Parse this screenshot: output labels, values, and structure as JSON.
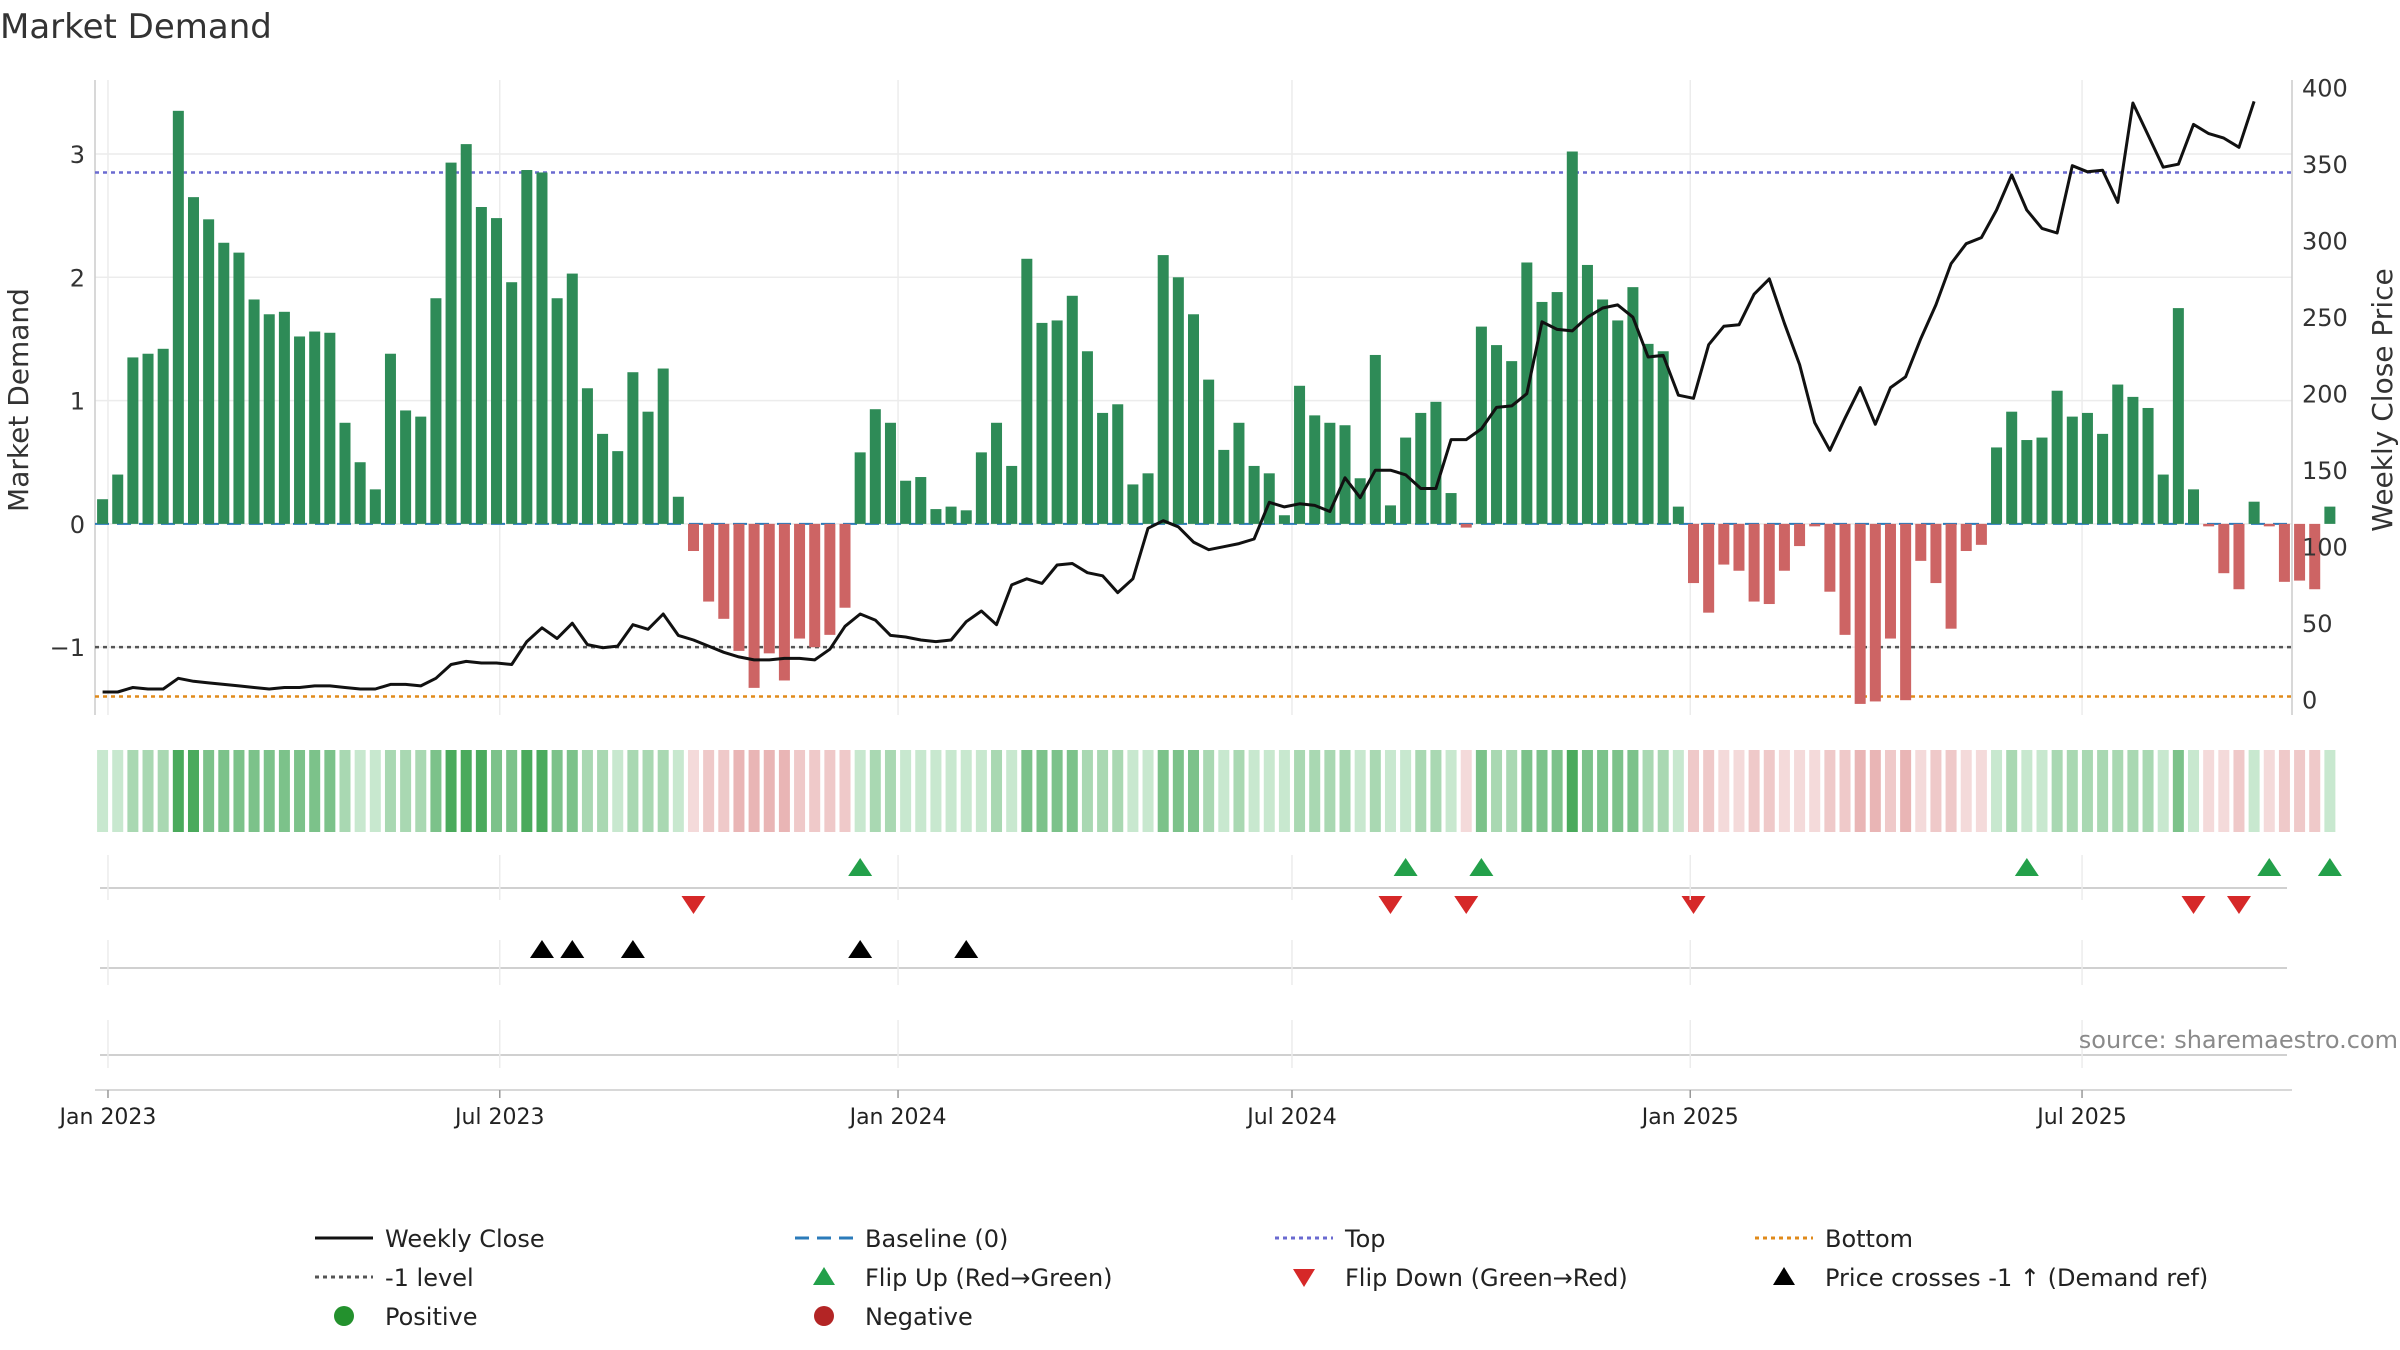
{
  "chart_data": {
    "type": "bar",
    "title": "Market Demand",
    "ylabel_left": "Market Demand",
    "ylabel_right": "Weekly Close Price",
    "source_text": "source: sharemaestro.com",
    "ylim_left": [
      -1.55,
      3.6
    ],
    "ylim_right": [
      -10,
      405
    ],
    "yticks_left": [
      -1,
      0,
      1,
      2,
      3
    ],
    "ytick_labels_left": [
      "−1",
      "0",
      "1",
      "2",
      "3"
    ],
    "yticks_right": [
      0,
      50,
      100,
      150,
      200,
      250,
      300,
      350,
      400
    ],
    "x_start": "2022-12-26",
    "x_end": "2025-10-06",
    "x_ticks": [
      {
        "date": "2023-01-01",
        "label": "Jan 2023"
      },
      {
        "date": "2023-07-01",
        "label": "Jul 2023"
      },
      {
        "date": "2024-01-01",
        "label": "Jan 2024"
      },
      {
        "date": "2024-07-01",
        "label": "Jul 2024"
      },
      {
        "date": "2025-01-01",
        "label": "Jan 2025"
      },
      {
        "date": "2025-07-01",
        "label": "Jul 2025"
      }
    ],
    "demand": [
      0.2,
      0.4,
      1.35,
      1.38,
      1.42,
      3.35,
      2.65,
      2.47,
      2.28,
      2.2,
      1.82,
      1.7,
      1.72,
      1.52,
      1.56,
      1.55,
      0.82,
      0.5,
      0.28,
      1.38,
      0.92,
      0.87,
      1.83,
      2.93,
      3.08,
      2.57,
      2.48,
      1.96,
      2.87,
      2.85,
      1.83,
      2.03,
      1.1,
      0.73,
      0.59,
      1.23,
      0.91,
      1.26,
      0.22,
      -0.22,
      -0.63,
      -0.77,
      -1.03,
      -1.33,
      -1.05,
      -1.27,
      -0.93,
      -1.0,
      -0.9,
      -0.68,
      0.58,
      0.93,
      0.82,
      0.35,
      0.38,
      0.12,
      0.14,
      0.11,
      0.58,
      0.82,
      0.47,
      2.15,
      1.63,
      1.65,
      1.85,
      1.4,
      0.9,
      0.97,
      0.32,
      0.41,
      2.18,
      2.0,
      1.7,
      1.17,
      0.6,
      0.82,
      0.47,
      0.41,
      0.07,
      1.12,
      0.88,
      0.82,
      0.8,
      0.37,
      1.37,
      0.15,
      0.7,
      0.9,
      0.99,
      0.25,
      -0.03,
      1.6,
      1.45,
      1.32,
      2.12,
      1.8,
      1.88,
      3.02,
      2.1,
      1.82,
      1.65,
      1.92,
      1.46,
      1.4,
      0.14,
      -0.48,
      -0.72,
      -0.33,
      -0.38,
      -0.63,
      -0.65,
      -0.38,
      -0.18,
      -0.02,
      -0.55,
      -0.9,
      -1.46,
      -1.44,
      -0.93,
      -1.43,
      -0.3,
      -0.48,
      -0.85,
      -0.22,
      -0.17,
      0.62,
      0.91,
      0.68,
      0.7,
      1.08,
      0.87,
      0.9,
      0.73,
      1.13,
      1.03,
      0.94,
      0.4,
      1.75,
      0.28,
      -0.02,
      -0.4,
      -0.53,
      0.18,
      -0.02,
      -0.47,
      -0.46,
      -0.53,
      0.14
    ],
    "price": [
      5,
      5,
      8,
      7,
      7,
      14,
      12,
      11,
      10,
      9,
      8,
      7,
      8,
      8,
      9,
      9,
      8,
      7,
      7,
      10,
      10,
      9,
      14,
      23,
      25,
      24,
      24,
      23,
      38,
      47,
      40,
      50,
      36,
      34,
      35,
      49,
      46,
      56,
      42,
      39,
      35,
      31,
      28,
      26,
      26,
      27,
      27,
      26,
      33,
      48,
      56,
      52,
      42,
      41,
      39,
      38,
      39,
      51,
      58,
      49,
      75,
      79,
      76,
      88,
      89,
      83,
      81,
      70,
      79,
      112,
      117,
      113,
      103,
      98,
      100,
      102,
      105,
      129,
      126,
      128,
      127,
      123,
      145,
      132,
      150,
      150,
      147,
      138,
      138,
      170,
      170,
      177,
      191,
      192,
      200,
      247,
      242,
      241,
      250,
      256,
      258,
      250,
      224,
      225,
      199,
      197,
      232,
      244,
      245,
      265,
      275,
      246,
      219,
      181,
      163,
      184,
      204,
      180,
      204,
      211,
      236,
      258,
      285,
      298,
      302,
      320,
      343,
      320,
      308,
      305,
      349,
      345,
      346,
      325,
      390,
      369,
      348,
      350,
      376,
      370,
      367,
      361,
      391
    ],
    "top_level": 2.85,
    "bottom_level": -1.4,
    "minus_one_level": -1,
    "flip_up_idx": [
      50,
      86,
      91,
      127,
      143,
      147
    ],
    "flip_down_idx": [
      39,
      85,
      90,
      105,
      138,
      141
    ],
    "price_cross_idx": [
      29,
      31,
      35,
      50,
      57
    ],
    "legend": [
      {
        "label": "Weekly Close",
        "kind": "solid",
        "color": "#111111"
      },
      {
        "label": "Baseline (0)",
        "kind": "dash",
        "color": "#2b7bba"
      },
      {
        "label": "Top",
        "kind": "dot",
        "color": "#6a6ad0"
      },
      {
        "label": "Bottom",
        "kind": "dot",
        "color": "#e08a1a"
      },
      {
        "label": "-1 level",
        "kind": "dot",
        "color": "#555555"
      },
      {
        "label": "Flip Up (Red→Green)",
        "kind": "tri-up",
        "color": "#23a04a"
      },
      {
        "label": "Flip Down (Green→Red)",
        "kind": "tri-down",
        "color": "#d62828"
      },
      {
        "label": "Price crosses -1 ↑ (Demand ref)",
        "kind": "tri-up",
        "color": "#000000"
      },
      {
        "label": "Positive",
        "kind": "circle",
        "color": "#23912d"
      },
      {
        "label": "Negative",
        "kind": "circle",
        "color": "#b32525"
      }
    ],
    "colors": {
      "positive_bar": "#2e8b57",
      "negative_bar": "#cd6464",
      "price_line": "#111111",
      "baseline": "#2b7bba",
      "top": "#6a6ad0",
      "bottom": "#e08a1a",
      "minus_one": "#555555",
      "grid": "#ececec",
      "axis": "#cccccc"
    }
  }
}
